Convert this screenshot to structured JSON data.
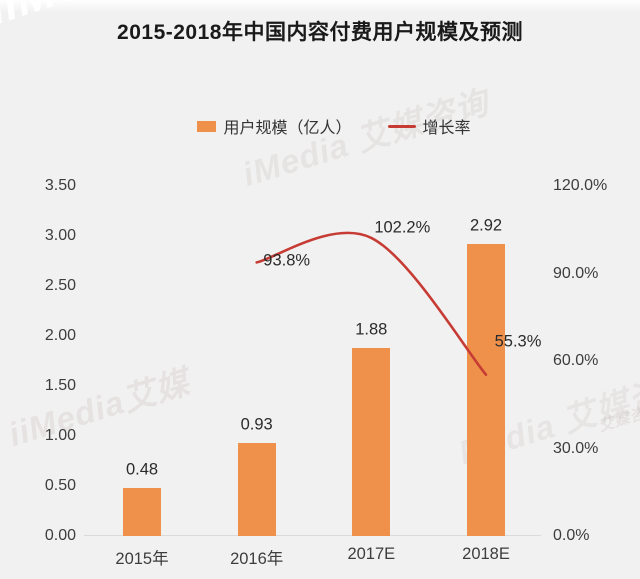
{
  "title": "2015-2018年中国内容付费用户规模及预测",
  "legend": {
    "items": [
      {
        "label": "用户规模（亿人）",
        "marker": "bar-swatch"
      },
      {
        "label": "增长率",
        "marker": "line-swatch"
      }
    ]
  },
  "colors": {
    "background": "#F2F1F1",
    "bar": "#F0914B",
    "line": "#C63C34",
    "axis_line": "#DCDAD9",
    "tick_text": "#3D3D3D",
    "title_text": "#1A1A1A"
  },
  "watermarks": [
    "iiMedia",
    "iMedia 艾媒咨询",
    "iiMedia艾媒",
    "Media 艾媒咨询",
    "艾媒咨询"
  ],
  "chart_data": {
    "type": "bar",
    "subtype": "combo-bar-line",
    "title": "2015-2018年中国内容付费用户规模及预测",
    "categories": [
      "2015年",
      "2016年",
      "2017E",
      "2018E"
    ],
    "series": [
      {
        "name": "用户规模（亿人）",
        "type": "bar",
        "axis": "left",
        "values": [
          0.48,
          0.93,
          1.88,
          2.92
        ],
        "labels": [
          "0.48",
          "0.93",
          "1.88",
          "2.92"
        ],
        "color": "#F0914B"
      },
      {
        "name": "增长率",
        "type": "line",
        "axis": "right",
        "values": [
          null,
          93.8,
          102.2,
          55.3
        ],
        "labels": [
          "93.8%",
          "102.2%",
          "55.3%"
        ],
        "color": "#C63C34"
      }
    ],
    "left_axis": {
      "min": 0,
      "max": 3.5,
      "ticks": [
        0,
        0.5,
        1,
        1.5,
        2,
        2.5,
        3,
        3.5
      ],
      "tick_labels": [
        "0.00",
        "0.50",
        "1.00",
        "1.50",
        "2.00",
        "2.50",
        "3.00",
        "3.50"
      ]
    },
    "right_axis": {
      "min": 0,
      "max": 120,
      "ticks": [
        0,
        30,
        60,
        90,
        120
      ],
      "tick_labels": [
        "0.0%",
        "30.0%",
        "60.0%",
        "90.0%",
        "120.0%"
      ]
    },
    "grid": false,
    "legend_position": "top"
  }
}
